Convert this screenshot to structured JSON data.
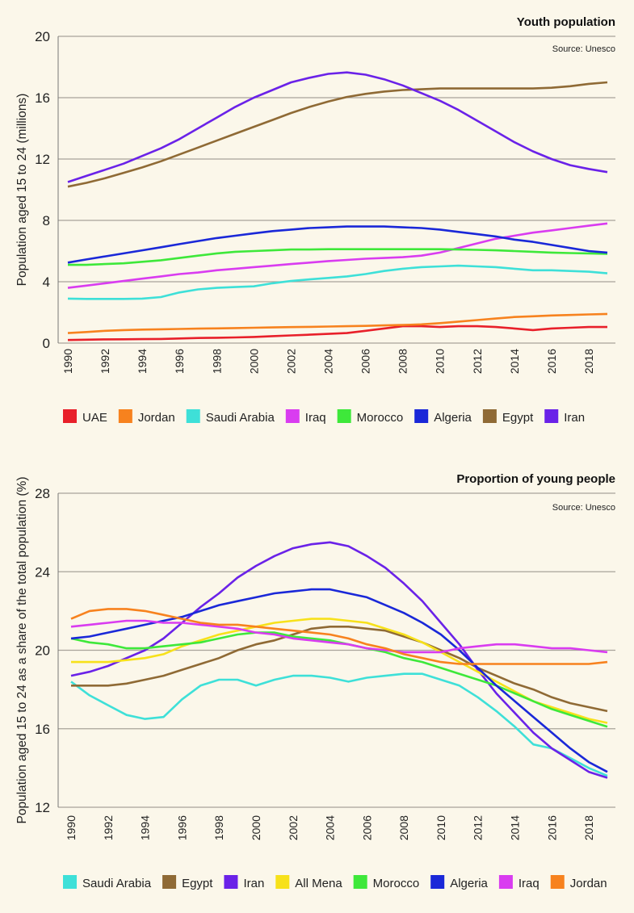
{
  "chart_data": [
    {
      "type": "line",
      "title": "Youth population",
      "source": "Source: Unesco",
      "xlabel": "",
      "ylabel": "Population aged 15 to 24 (millions)",
      "ylim": [
        0,
        20
      ],
      "yticks": [
        0,
        4,
        8,
        12,
        16,
        20
      ],
      "xticks": [
        1990,
        1992,
        1994,
        1996,
        1998,
        2000,
        2002,
        2004,
        2006,
        2008,
        2010,
        2012,
        2014,
        2016,
        2018
      ],
      "grid": true,
      "legend": "bottom",
      "x": [
        1990,
        1991,
        1992,
        1993,
        1994,
        1995,
        1996,
        1997,
        1998,
        1999,
        2000,
        2001,
        2002,
        2003,
        2004,
        2005,
        2006,
        2007,
        2008,
        2009,
        2010,
        2011,
        2012,
        2013,
        2014,
        2015,
        2016,
        2017,
        2018,
        2019
      ],
      "series": [
        {
          "name": "UAE",
          "color": "#e8202a",
          "values": [
            0.2,
            0.22,
            0.24,
            0.25,
            0.26,
            0.27,
            0.3,
            0.33,
            0.35,
            0.37,
            0.4,
            0.45,
            0.5,
            0.55,
            0.6,
            0.65,
            0.8,
            0.95,
            1.1,
            1.1,
            1.05,
            1.1,
            1.1,
            1.05,
            0.95,
            0.85,
            0.95,
            1.0,
            1.05,
            1.05
          ]
        },
        {
          "name": "Jordan",
          "color": "#f7821e",
          "values": [
            0.65,
            0.72,
            0.8,
            0.85,
            0.88,
            0.9,
            0.92,
            0.94,
            0.96,
            0.98,
            1.0,
            1.02,
            1.04,
            1.06,
            1.08,
            1.1,
            1.12,
            1.15,
            1.18,
            1.22,
            1.3,
            1.4,
            1.5,
            1.6,
            1.7,
            1.75,
            1.8,
            1.83,
            1.87,
            1.9
          ]
        },
        {
          "name": "Saudi Arabia",
          "color": "#3ee0d8",
          "values": [
            2.9,
            2.88,
            2.88,
            2.88,
            2.9,
            3.0,
            3.3,
            3.5,
            3.6,
            3.65,
            3.7,
            3.9,
            4.05,
            4.15,
            4.25,
            4.35,
            4.5,
            4.7,
            4.85,
            4.95,
            5.0,
            5.05,
            5.0,
            4.95,
            4.85,
            4.75,
            4.75,
            4.7,
            4.65,
            4.55
          ]
        },
        {
          "name": "Iraq",
          "color": "#d93cf0",
          "values": [
            3.6,
            3.75,
            3.9,
            4.05,
            4.2,
            4.35,
            4.5,
            4.6,
            4.75,
            4.85,
            4.95,
            5.05,
            5.15,
            5.25,
            5.35,
            5.42,
            5.5,
            5.55,
            5.6,
            5.7,
            5.9,
            6.2,
            6.5,
            6.8,
            7.0,
            7.2,
            7.35,
            7.5,
            7.65,
            7.8
          ]
        },
        {
          "name": "Morocco",
          "color": "#3ee83a",
          "values": [
            5.1,
            5.1,
            5.15,
            5.2,
            5.3,
            5.4,
            5.55,
            5.7,
            5.85,
            5.95,
            6.0,
            6.05,
            6.1,
            6.1,
            6.12,
            6.12,
            6.12,
            6.12,
            6.12,
            6.12,
            6.12,
            6.1,
            6.08,
            6.05,
            6.0,
            5.95,
            5.9,
            5.87,
            5.85,
            5.82
          ]
        },
        {
          "name": "Algeria",
          "color": "#1a28d8",
          "values": [
            5.25,
            5.45,
            5.65,
            5.85,
            6.05,
            6.25,
            6.45,
            6.65,
            6.85,
            7.0,
            7.15,
            7.3,
            7.4,
            7.5,
            7.55,
            7.6,
            7.6,
            7.6,
            7.55,
            7.5,
            7.4,
            7.25,
            7.1,
            6.95,
            6.75,
            6.6,
            6.4,
            6.2,
            6.0,
            5.9
          ]
        },
        {
          "name": "Egypt",
          "color": "#8f6a35",
          "values": [
            10.2,
            10.45,
            10.75,
            11.1,
            11.45,
            11.85,
            12.3,
            12.75,
            13.2,
            13.65,
            14.1,
            14.55,
            15.0,
            15.4,
            15.75,
            16.05,
            16.25,
            16.4,
            16.5,
            16.55,
            16.6,
            16.6,
            16.6,
            16.6,
            16.6,
            16.6,
            16.65,
            16.75,
            16.9,
            17.0
          ]
        },
        {
          "name": "Iran",
          "color": "#6a22e8",
          "values": [
            10.5,
            10.9,
            11.3,
            11.7,
            12.2,
            12.7,
            13.3,
            14.0,
            14.7,
            15.4,
            16.0,
            16.5,
            17.0,
            17.3,
            17.55,
            17.65,
            17.5,
            17.2,
            16.8,
            16.3,
            15.8,
            15.2,
            14.5,
            13.8,
            13.1,
            12.5,
            12.0,
            11.6,
            11.35,
            11.15
          ]
        }
      ]
    },
    {
      "type": "line",
      "title": "Proportion of young people",
      "source": "Source: Unesco",
      "xlabel": "",
      "ylabel": "Population aged 15 to 24 as a share of the total population (%)",
      "ylim": [
        12,
        28
      ],
      "yticks": [
        12,
        16,
        20,
        24,
        28
      ],
      "xticks": [
        1990,
        1992,
        1994,
        1996,
        1998,
        2000,
        2002,
        2004,
        2006,
        2008,
        2010,
        2012,
        2014,
        2016,
        2018
      ],
      "grid": true,
      "legend": "bottom",
      "x": [
        1990,
        1991,
        1992,
        1993,
        1994,
        1995,
        1996,
        1997,
        1998,
        1999,
        2000,
        2001,
        2002,
        2003,
        2004,
        2005,
        2006,
        2007,
        2008,
        2009,
        2010,
        2011,
        2012,
        2013,
        2014,
        2015,
        2016,
        2017,
        2018,
        2019
      ],
      "series": [
        {
          "name": "Saudi Arabia",
          "color": "#3ee0d8",
          "values": [
            18.4,
            17.7,
            17.2,
            16.7,
            16.5,
            16.6,
            17.5,
            18.2,
            18.5,
            18.5,
            18.2,
            18.5,
            18.7,
            18.7,
            18.6,
            18.4,
            18.6,
            18.7,
            18.8,
            18.8,
            18.5,
            18.2,
            17.6,
            16.9,
            16.1,
            15.2,
            15.0,
            14.5,
            14.0,
            13.6
          ]
        },
        {
          "name": "Egypt",
          "color": "#8f6a35",
          "values": [
            18.2,
            18.2,
            18.2,
            18.3,
            18.5,
            18.7,
            19.0,
            19.3,
            19.6,
            20.0,
            20.3,
            20.5,
            20.8,
            21.1,
            21.2,
            21.2,
            21.1,
            21.0,
            20.7,
            20.4,
            20.0,
            19.6,
            19.1,
            18.7,
            18.3,
            18.0,
            17.6,
            17.3,
            17.1,
            16.9
          ]
        },
        {
          "name": "Iran",
          "color": "#6a22e8",
          "values": [
            18.7,
            18.9,
            19.2,
            19.6,
            20.0,
            20.6,
            21.4,
            22.2,
            22.9,
            23.7,
            24.3,
            24.8,
            25.2,
            25.4,
            25.5,
            25.3,
            24.8,
            24.2,
            23.4,
            22.5,
            21.4,
            20.3,
            19.0,
            17.8,
            16.8,
            15.8,
            15.0,
            14.4,
            13.8,
            13.5
          ]
        },
        {
          "name": "All Mena",
          "color": "#f7e11a",
          "values": [
            19.4,
            19.4,
            19.4,
            19.5,
            19.6,
            19.8,
            20.2,
            20.5,
            20.8,
            21.0,
            21.2,
            21.4,
            21.5,
            21.6,
            21.6,
            21.5,
            21.4,
            21.1,
            20.8,
            20.4,
            19.9,
            19.4,
            18.9,
            18.4,
            17.9,
            17.4,
            17.1,
            16.8,
            16.5,
            16.3
          ]
        },
        {
          "name": "Morocco",
          "color": "#3ee83a",
          "values": [
            20.6,
            20.4,
            20.3,
            20.1,
            20.1,
            20.2,
            20.3,
            20.4,
            20.6,
            20.8,
            20.9,
            20.9,
            20.7,
            20.6,
            20.5,
            20.3,
            20.1,
            19.9,
            19.6,
            19.4,
            19.1,
            18.8,
            18.5,
            18.2,
            17.8,
            17.4,
            17.0,
            16.7,
            16.4,
            16.1
          ]
        },
        {
          "name": "Algeria",
          "color": "#1a28d8",
          "values": [
            20.6,
            20.7,
            20.9,
            21.1,
            21.3,
            21.5,
            21.7,
            22.0,
            22.3,
            22.5,
            22.7,
            22.9,
            23.0,
            23.1,
            23.1,
            22.9,
            22.7,
            22.3,
            21.9,
            21.4,
            20.8,
            20.0,
            19.1,
            18.2,
            17.4,
            16.6,
            15.8,
            15.0,
            14.3,
            13.8
          ]
        },
        {
          "name": "Iraq",
          "color": "#d93cf0",
          "values": [
            21.2,
            21.3,
            21.4,
            21.5,
            21.5,
            21.4,
            21.4,
            21.3,
            21.2,
            21.1,
            20.9,
            20.8,
            20.6,
            20.5,
            20.4,
            20.3,
            20.1,
            20.0,
            19.9,
            19.9,
            19.9,
            20.1,
            20.2,
            20.3,
            20.3,
            20.2,
            20.1,
            20.1,
            20.0,
            19.9
          ]
        },
        {
          "name": "Jordan",
          "color": "#f7821e",
          "values": [
            21.6,
            22.0,
            22.1,
            22.1,
            22.0,
            21.8,
            21.6,
            21.4,
            21.3,
            21.3,
            21.2,
            21.1,
            21.0,
            20.9,
            20.8,
            20.6,
            20.3,
            20.1,
            19.8,
            19.6,
            19.4,
            19.3,
            19.3,
            19.3,
            19.3,
            19.3,
            19.3,
            19.3,
            19.3,
            19.4
          ]
        }
      ]
    }
  ]
}
